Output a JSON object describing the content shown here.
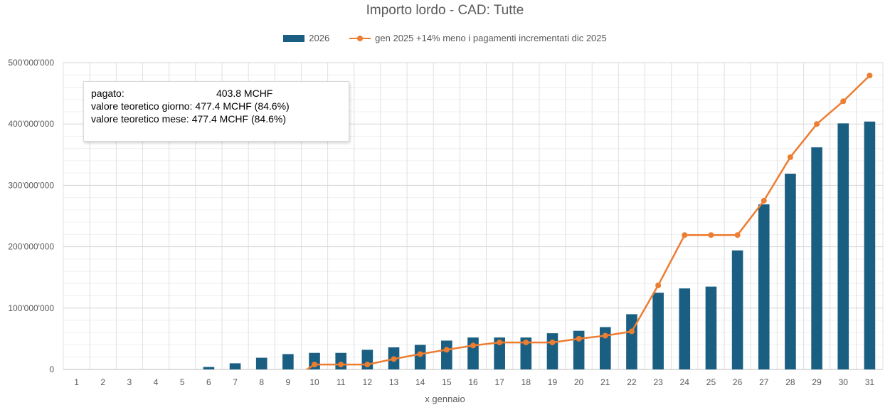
{
  "chart_data": {
    "type": "bar+line",
    "title": "Importo lordo - CAD: Tutte",
    "xlabel": "x gennaio",
    "ylabel": "",
    "categories": [
      "1",
      "2",
      "3",
      "4",
      "5",
      "6",
      "7",
      "8",
      "9",
      "10",
      "11",
      "12",
      "13",
      "14",
      "15",
      "16",
      "17",
      "18",
      "19",
      "20",
      "21",
      "22",
      "23",
      "24",
      "25",
      "26",
      "27",
      "28",
      "29",
      "30",
      "31"
    ],
    "ylim": [
      0,
      500000000
    ],
    "yticks": [
      0,
      100000000,
      200000000,
      300000000,
      400000000,
      500000000
    ],
    "ytick_labels": [
      "0",
      "100'000'000",
      "200'000'000",
      "300'000'000",
      "400'000'000",
      "500'000'000"
    ],
    "grid": true,
    "legend_position": "top-center",
    "series": [
      {
        "name": "2026",
        "type": "bar",
        "color": "#1a5f82",
        "values": [
          0,
          0,
          0,
          0,
          0,
          4000000,
          10000000,
          19000000,
          25000000,
          27000000,
          27000000,
          32000000,
          36000000,
          40000000,
          47000000,
          52000000,
          52000000,
          52000000,
          59000000,
          63000000,
          69000000,
          90000000,
          125000000,
          132000000,
          135000000,
          194000000,
          269000000,
          319000000,
          362000000,
          401000000,
          404000000
        ]
      },
      {
        "name": "gen 2025 +14% meno i pagamenti incrementati dic 2025",
        "type": "line",
        "color": "#ed7d31",
        "values": [
          null,
          null,
          null,
          null,
          null,
          null,
          null,
          null,
          null,
          8000000,
          8000000,
          8000000,
          17000000,
          25000000,
          32000000,
          39000000,
          44000000,
          44000000,
          44000000,
          50000000,
          55000000,
          62000000,
          137000000,
          219000000,
          219000000,
          219000000,
          275000000,
          346000000,
          400000000,
          437000000,
          479000000
        ],
        "line_entry_from_value": -20000000
      }
    ]
  },
  "info_box": {
    "rows": [
      {
        "label": "pagato:",
        "value": "403.8 MCHF"
      },
      {
        "label": "valore teoretico giorno:",
        "value": "477.4 MCHF (84.6%)"
      },
      {
        "label": "valore teoretico mese:",
        "value": "477.4 MCHF (84.6%)"
      }
    ]
  }
}
